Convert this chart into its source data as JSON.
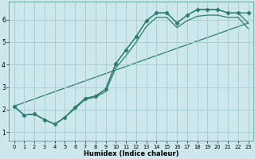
{
  "title": "",
  "xlabel": "Humidex (Indice chaleur)",
  "bg_color": "#cce8ec",
  "grid_color": "#aacdd4",
  "line_color": "#2e7d6e",
  "xlim": [
    -0.5,
    23.5
  ],
  "ylim": [
    0.6,
    6.8
  ],
  "xticks": [
    0,
    1,
    2,
    3,
    4,
    5,
    6,
    7,
    8,
    9,
    10,
    11,
    12,
    13,
    14,
    15,
    16,
    17,
    18,
    19,
    20,
    21,
    22,
    23
  ],
  "yticks": [
    1,
    2,
    3,
    4,
    5,
    6
  ],
  "line1_x": [
    0,
    1,
    2,
    3,
    4,
    5,
    6,
    7,
    8,
    9,
    10,
    11,
    12,
    13,
    14,
    15,
    16,
    17,
    18,
    19,
    20,
    21,
    22,
    23
  ],
  "line1_y": [
    2.15,
    1.75,
    1.8,
    1.55,
    1.35,
    1.65,
    2.1,
    2.5,
    2.6,
    2.9,
    4.05,
    4.65,
    5.25,
    5.95,
    6.3,
    6.3,
    5.85,
    6.2,
    6.45,
    6.45,
    6.45,
    6.3,
    6.3,
    6.3
  ],
  "line2_x": [
    0,
    1,
    2,
    3,
    4,
    5,
    6,
    7,
    8,
    9,
    10,
    11,
    12,
    13,
    14,
    15,
    16,
    17,
    18,
    19,
    20,
    21,
    22,
    23
  ],
  "line2_y": [
    2.15,
    1.75,
    1.8,
    1.55,
    1.35,
    1.65,
    2.1,
    2.5,
    2.6,
    2.9,
    4.05,
    4.65,
    5.25,
    5.95,
    6.3,
    6.3,
    5.85,
    6.2,
    6.45,
    6.45,
    6.45,
    6.3,
    6.3,
    5.85
  ],
  "line3_x": [
    0,
    1,
    2,
    3,
    4,
    5,
    6,
    7,
    8,
    9,
    10,
    11,
    12,
    13,
    14,
    15,
    16,
    17,
    18,
    19,
    20,
    21,
    22,
    23
  ],
  "line3_y": [
    2.15,
    1.75,
    1.8,
    1.55,
    1.35,
    1.65,
    2.05,
    2.45,
    2.55,
    2.8,
    3.85,
    4.4,
    5.0,
    5.7,
    6.1,
    6.1,
    5.65,
    5.95,
    6.15,
    6.2,
    6.2,
    6.1,
    6.1,
    5.6
  ],
  "line4_x": [
    0,
    23
  ],
  "line4_y": [
    2.15,
    5.85
  ]
}
